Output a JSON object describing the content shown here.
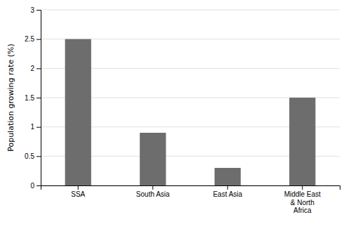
{
  "chart_data": {
    "type": "bar",
    "categories": [
      "SSA",
      "South Asia",
      "East Asia",
      "Middle East\n& North\nAfrica"
    ],
    "values": [
      2.5,
      0.9,
      0.3,
      1.5
    ],
    "color": "#6d6d6d",
    "ylabel": "Population growing rate (%)",
    "ylim": [
      0,
      3
    ],
    "yticks": [
      0,
      0.5,
      1,
      1.5,
      2,
      2.5,
      3
    ],
    "grid": true
  }
}
